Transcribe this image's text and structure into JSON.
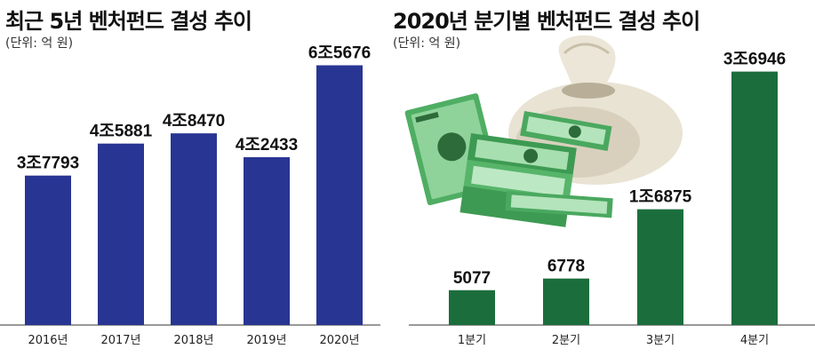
{
  "chart_data": [
    {
      "type": "bar",
      "title": "최근 5년 벤처펀드 결성 추이",
      "unit_note": "(단위: 억 원)",
      "categories": [
        "2016년",
        "2017년",
        "2018년",
        "2019년",
        "2020년"
      ],
      "values": [
        37793,
        45881,
        48470,
        42433,
        65676
      ],
      "data_labels": [
        "3조7793",
        "4조5881",
        "4조8470",
        "4조2433",
        "6조5676"
      ],
      "color": "#283593",
      "ylim": [
        0,
        75000
      ],
      "grid": false
    },
    {
      "type": "bar",
      "title": "2020년 분기별 벤처펀드 결성 추이",
      "unit_note": "(단위: 억 원)",
      "categories": [
        "1분기",
        "2분기",
        "3분기",
        "4분기"
      ],
      "values": [
        5077,
        6778,
        16875,
        36946
      ],
      "data_labels": [
        "5077",
        "6778",
        "1조6875",
        "3조6946"
      ],
      "color": "#1b6e3c",
      "ylim": [
        0,
        40000
      ],
      "grid": false
    }
  ]
}
